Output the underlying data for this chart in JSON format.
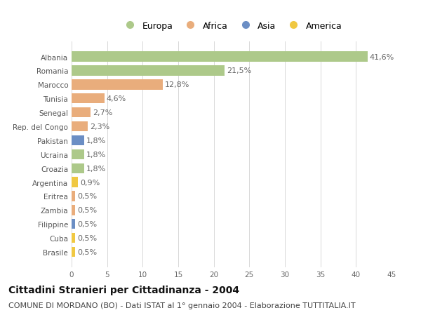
{
  "categories": [
    "Brasile",
    "Cuba",
    "Filippine",
    "Zambia",
    "Eritrea",
    "Argentina",
    "Croazia",
    "Ucraina",
    "Pakistan",
    "Rep. del Congo",
    "Senegal",
    "Tunisia",
    "Marocco",
    "Romania",
    "Albania"
  ],
  "values": [
    0.5,
    0.5,
    0.5,
    0.5,
    0.5,
    0.9,
    1.8,
    1.8,
    1.8,
    2.3,
    2.7,
    4.6,
    12.8,
    21.5,
    41.6
  ],
  "labels": [
    "0,5%",
    "0,5%",
    "0,5%",
    "0,5%",
    "0,5%",
    "0,9%",
    "1,8%",
    "1,8%",
    "1,8%",
    "2,3%",
    "2,7%",
    "4,6%",
    "12,8%",
    "21,5%",
    "41,6%"
  ],
  "continents": [
    "America",
    "America",
    "Asia",
    "Africa",
    "Africa",
    "America",
    "Europa",
    "Europa",
    "Asia",
    "Africa",
    "Africa",
    "Africa",
    "Africa",
    "Europa",
    "Europa"
  ],
  "colors": {
    "Europa": "#adc98a",
    "Africa": "#e9ad7c",
    "Asia": "#6b8ec4",
    "America": "#f0c842"
  },
  "legend_order": [
    "Europa",
    "Africa",
    "Asia",
    "America"
  ],
  "title": "Cittadini Stranieri per Cittadinanza - 2004",
  "subtitle": "COMUNE DI MORDANO (BO) - Dati ISTAT al 1° gennaio 2004 - Elaborazione TUTTITALIA.IT",
  "xlabel_values": [
    0,
    5,
    10,
    15,
    20,
    25,
    30,
    35,
    40,
    45
  ],
  "xlim": [
    0,
    45
  ],
  "background_color": "#ffffff",
  "grid_color": "#d8d8d8",
  "bar_height": 0.72,
  "title_fontsize": 10,
  "subtitle_fontsize": 8,
  "label_fontsize": 8,
  "tick_fontsize": 7.5,
  "legend_fontsize": 9
}
